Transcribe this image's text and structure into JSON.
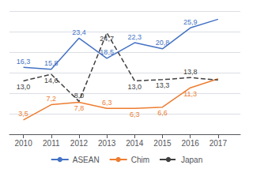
{
  "chart_data": {
    "type": "line",
    "x": [
      2010,
      2011,
      2012,
      2013,
      2014,
      2015,
      2016,
      2017
    ],
    "xlim": [
      2009.5,
      2017.8
    ],
    "xticks": [
      2010,
      2011,
      2012,
      2013,
      2014,
      2015,
      2016,
      2017
    ],
    "ylim": [
      0,
      30
    ],
    "yticks": [
      0,
      5,
      10,
      15,
      20,
      25,
      30
    ],
    "grid": true,
    "tick_labels": "x",
    "legend": "bottom",
    "data_labels": true,
    "series": [
      {
        "name": "ASEAN",
        "color": "#4472C4",
        "line_style": "solid",
        "values": [
          16.3,
          15.8,
          23.4,
          18.5,
          22.3,
          20.8,
          25.9,
          28.0
        ],
        "value_labels": [
          "16,3",
          "15,8",
          "23,4",
          "18,5",
          "22,3",
          "20,8",
          "25,9",
          null
        ]
      },
      {
        "name": "Chim",
        "color": "#ED7D31",
        "line_style": "solid",
        "values": [
          3.5,
          7.2,
          7.8,
          6.3,
          6.3,
          6.6,
          11.3,
          13.5
        ],
        "value_labels": [
          "3,5",
          "7,2",
          "7,8",
          "6,3",
          "6,3",
          "6,6",
          "11,3",
          null
        ]
      },
      {
        "name": "Japan",
        "color": "#404040",
        "line_style": "dashed",
        "values": [
          13.0,
          14.6,
          8.0,
          24.7,
          13.0,
          13.3,
          13.8,
          13.2
        ],
        "value_labels": [
          "13,0",
          "14,6",
          "8,0",
          "24,7",
          "13,0",
          "13,3",
          "13,8",
          null
        ]
      }
    ]
  }
}
